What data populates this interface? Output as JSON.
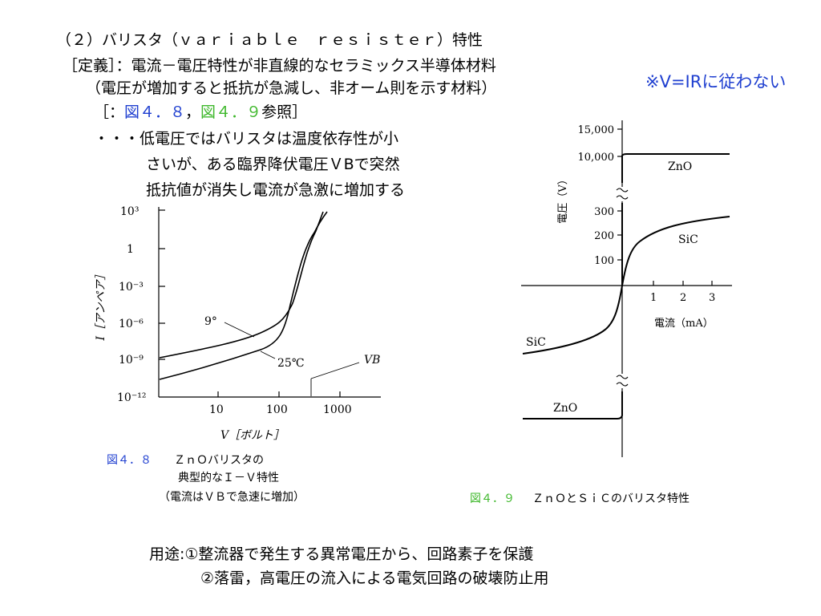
{
  "slide": {
    "title": "（２）バリスタ（ｖａｒｉａｂｌｅ　ｒｅｓｉｓｔｅｒ）特性",
    "definition": "［定義］：電流－電圧特性が非直線的なセラミックス半導体材料",
    "definition_note": "（電圧が増加すると抵抗が急減し、非オーム則を示す材料）",
    "ref_open": "［：",
    "ref_fig8": "図４．８",
    "ref_sep": "，",
    "ref_fig9": "図４．９",
    "ref_close": "参照］",
    "ohm_note": "※V=IRに従わない",
    "desc_line1": "・・・低電圧ではバリスタは温度依存性が小",
    "desc_line2": "さいが、ある臨界降伏電圧ＶBで突然",
    "desc_line3": "抵抗値が消失し電流が急激に増加する",
    "usage_line1": "用途:①整流器で発生する異常電圧から、回路素子を保護",
    "usage_line2": "②落雷，高電圧の流入による電気回路の破壊防止用"
  },
  "figures": {
    "fig8_caption_num": "図４．８",
    "fig8_caption_title": "ＺｎＯバリスタの",
    "fig8_caption_line2": "典型的なＩ－Ｖ特性",
    "fig8_caption_line3": "（電流はＶＢで急速に増加）",
    "fig9_caption_num": "図４．９",
    "fig9_caption_title": "ＺｎＯとＳｉＣのバリスタ特性"
  },
  "chart_data": [
    {
      "type": "line",
      "xlabel": "V［ボルト］",
      "ylabel": "I［アンペア］",
      "x_scale": "log",
      "y_scale": "log",
      "xlim": [
        1,
        3000
      ],
      "ylim": [
        1e-12,
        1000
      ],
      "x_ticks": [
        "10",
        "100",
        "1000"
      ],
      "y_ticks": [
        "10³",
        "1",
        "10⁻³",
        "10⁻⁶",
        "10⁻⁹",
        "10⁻¹²"
      ],
      "series": [
        {
          "name": "9°",
          "x": [
            1.2,
            10,
            40,
            75,
            110,
            140,
            180,
            240,
            320,
            420
          ],
          "y": [
            1e-09,
            2.5e-09,
            1e-08,
            3e-08,
            3e-07,
            0.0001,
            0.1,
            3,
            30,
            100
          ]
        },
        {
          "name": "25℃",
          "x": [
            1.2,
            10,
            40,
            80,
            110,
            140,
            180,
            240,
            320,
            420
          ],
          "y": [
            2e-11,
            6e-10,
            3e-09,
            1e-08,
            1e-07,
            0.0001,
            0.03,
            1,
            15,
            80
          ]
        }
      ],
      "annotations": [
        "VB"
      ]
    },
    {
      "type": "line",
      "xlabel": "電流（mA）",
      "ylabel": "電圧（V）",
      "y_axis_break": true,
      "y_ticks": [
        "15,000",
        "10,000",
        "300",
        "200",
        "100"
      ],
      "x_ticks": [
        "1",
        "2",
        "3"
      ],
      "series": [
        {
          "name": "ZnO",
          "x": [
            -3.5,
            0,
            3.5
          ],
          "y": [
            -10000,
            0,
            10000
          ]
        },
        {
          "name": "SiC",
          "x": [
            -3.5,
            -2,
            -1,
            -0.5,
            0,
            0.5,
            1,
            2,
            3.5
          ],
          "y": [
            -300,
            -245,
            -180,
            -120,
            0,
            120,
            180,
            245,
            300
          ]
        }
      ]
    }
  ]
}
